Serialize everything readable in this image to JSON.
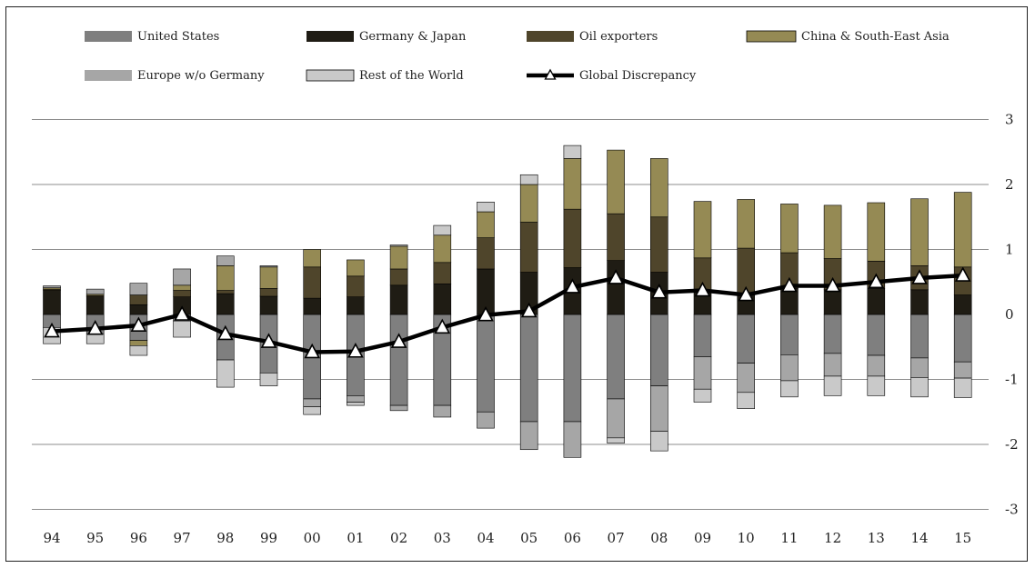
{
  "chart_data": {
    "type": "bar",
    "subtype": "stacked-bar-with-line",
    "categories": [
      "94",
      "95",
      "96",
      "97",
      "98",
      "99",
      "00",
      "01",
      "02",
      "03",
      "04",
      "05",
      "06",
      "07",
      "08",
      "09",
      "10",
      "11",
      "12",
      "13",
      "14",
      "15"
    ],
    "y_ticks": [
      "3",
      "2",
      "1",
      "0",
      "-1",
      "-2",
      "-3"
    ],
    "ylim": [
      -3,
      3
    ],
    "y_axis_side": "right",
    "grid": true,
    "legend_position": "top",
    "series": [
      {
        "name": "United States",
        "color": "#7f7f7f",
        "style": "bar",
        "values": [
          -0.2,
          -0.3,
          -0.4,
          -0.1,
          -0.7,
          -0.9,
          -1.3,
          -1.25,
          -1.4,
          -1.4,
          -1.5,
          -1.65,
          -1.65,
          -1.3,
          -1.1,
          -0.65,
          -0.75,
          -0.62,
          -0.6,
          -0.63,
          -0.67,
          -0.73
        ]
      },
      {
        "name": "Germany & Japan",
        "color": "#1f1c14",
        "style": "bar",
        "values": [
          0.37,
          0.27,
          0.15,
          0.27,
          0.32,
          0.28,
          0.25,
          0.27,
          0.45,
          0.47,
          0.7,
          0.65,
          0.72,
          0.83,
          0.65,
          0.35,
          0.32,
          0.4,
          0.38,
          0.4,
          0.38,
          0.3
        ]
      },
      {
        "name": "Oil exporters",
        "color": "#4f452b",
        "style": "bar",
        "values": [
          0.02,
          0.02,
          0.15,
          0.1,
          0.05,
          0.12,
          0.48,
          0.32,
          0.25,
          0.33,
          0.48,
          0.77,
          0.9,
          0.72,
          0.85,
          0.52,
          0.7,
          0.55,
          0.48,
          0.42,
          0.37,
          0.43
        ]
      },
      {
        "name": "China & South-East Asia",
        "color": "#958a54",
        "style": "bar",
        "values": [
          0.02,
          0.02,
          -0.08,
          0.08,
          0.38,
          0.33,
          0.27,
          0.25,
          0.35,
          0.42,
          0.4,
          0.58,
          0.78,
          0.98,
          0.9,
          0.87,
          0.75,
          0.75,
          0.82,
          0.9,
          1.03,
          1.15
        ]
      },
      {
        "name": "Europe w/o Germany",
        "color": "#a6a6a6",
        "style": "bar",
        "values": [
          0.03,
          0.08,
          0.18,
          0.25,
          0.15,
          0.02,
          -0.12,
          -0.1,
          -0.08,
          -0.18,
          -0.25,
          -0.43,
          -0.55,
          -0.6,
          -0.7,
          -0.5,
          -0.45,
          -0.4,
          -0.35,
          -0.32,
          -0.3,
          -0.25
        ]
      },
      {
        "name": "Rest of the World",
        "color": "#c9c9c9",
        "style": "bar",
        "values": [
          -0.25,
          -0.15,
          -0.15,
          -0.25,
          -0.42,
          -0.2,
          -0.12,
          -0.05,
          0.02,
          0.15,
          0.15,
          0.15,
          0.2,
          -0.08,
          -0.3,
          -0.2,
          -0.25,
          -0.25,
          -0.3,
          -0.3,
          -0.3,
          -0.3
        ]
      },
      {
        "name": "Global Discrepancy",
        "color": "#000000",
        "style": "line-triangle",
        "values": [
          -0.26,
          -0.22,
          -0.17,
          0.0,
          -0.3,
          -0.42,
          -0.58,
          -0.57,
          -0.42,
          -0.2,
          -0.01,
          0.05,
          0.42,
          0.56,
          0.34,
          0.37,
          0.3,
          0.44,
          0.44,
          0.5,
          0.56,
          0.6
        ]
      }
    ]
  }
}
